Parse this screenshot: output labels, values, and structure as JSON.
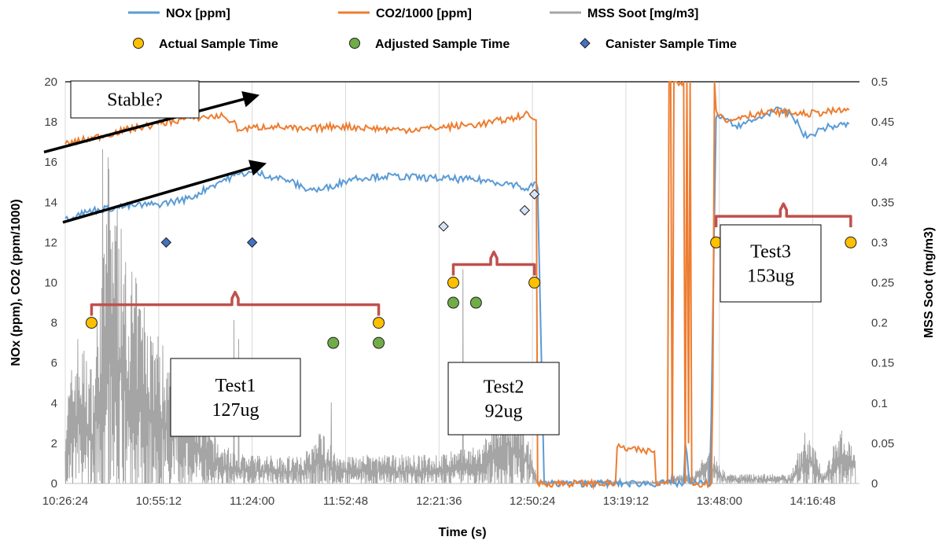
{
  "chart_data": {
    "type": "line",
    "xlabel": "Time (s)",
    "ylabel_left": "NOx (ppm), CO2 (ppm/1000)",
    "ylabel_right": "MSS Soot (mg/m3)",
    "x_ticks": [
      "10:26:24",
      "10:55:12",
      "11:24:00",
      "11:52:48",
      "12:21:36",
      "12:50:24",
      "13:19:12",
      "13:48:00",
      "14:16:48"
    ],
    "xlim": [
      "10:26:24",
      "14:31:12"
    ],
    "y_left_ticks": [
      "0",
      "2",
      "4",
      "6",
      "8",
      "10",
      "12",
      "14",
      "16",
      "18",
      "20"
    ],
    "y_left_lim": [
      0,
      20
    ],
    "y_right_ticks": [
      "0",
      "0.05",
      "0.1",
      "0.15",
      "0.2",
      "0.25",
      "0.3",
      "0.35",
      "0.4",
      "0.45",
      "0.5"
    ],
    "y_right_lim": [
      0,
      0.5
    ],
    "grid": "vertical",
    "legend": [
      {
        "label": "NOx [ppm]",
        "kind": "line",
        "color": "#5b9bd5"
      },
      {
        "label": "CO2/1000 [ppm]",
        "kind": "line",
        "color": "#ed7d31"
      },
      {
        "label": "MSS Soot [mg/m3]",
        "kind": "line",
        "color": "#a5a5a5"
      },
      {
        "label": "Actual Sample Time",
        "kind": "circle",
        "color": "#ffc000"
      },
      {
        "label": "Adjusted Sample Time",
        "kind": "circle",
        "color": "#70ad47"
      },
      {
        "label": "Canister Sample Time",
        "kind": "diamond",
        "color": "#4472c4"
      }
    ],
    "series": [
      {
        "name": "NOx [ppm]",
        "axis": "left",
        "color": "#5b9bd5",
        "x": [
          "10:26:24",
          "10:35:00",
          "10:45:00",
          "10:55:00",
          "11:05:00",
          "11:10:00",
          "11:15:00",
          "11:20:00",
          "11:24:00",
          "11:35:00",
          "11:40:00",
          "11:45:00",
          "11:50:00",
          "11:55:00",
          "12:05:00",
          "12:20:00",
          "12:35:00",
          "12:45:00",
          "12:49:00",
          "12:51:00",
          "12:52:00",
          "12:54:00",
          "13:33:00",
          "13:33:30",
          "13:34:00",
          "13:37:00",
          "13:37:30",
          "13:38:00",
          "13:38:30",
          "13:39:00",
          "13:45:00",
          "13:45:30",
          "13:46:00",
          "13:47:00",
          "13:49:00",
          "13:52:00",
          "13:58:00",
          "14:05:00",
          "14:10:00",
          "14:15:00",
          "14:20:00",
          "14:28:00"
        ],
        "y": [
          13.2,
          13.6,
          13.8,
          13.9,
          14.2,
          14.7,
          15.1,
          15.4,
          15.5,
          15.1,
          14.7,
          14.6,
          14.9,
          15.2,
          15.3,
          15.2,
          15.1,
          14.9,
          14.6,
          15.0,
          14.7,
          0,
          0,
          0.5,
          0,
          0,
          2.0,
          1.5,
          0.5,
          0,
          0,
          3.3,
          8.5,
          18.2,
          18.3,
          17.8,
          18.0,
          18.6,
          18.4,
          17.2,
          17.7,
          17.9
        ]
      },
      {
        "name": "CO2/1000 [ppm]",
        "axis": "left",
        "color": "#ed7d31",
        "x": [
          "10:26:24",
          "10:35:00",
          "10:45:00",
          "10:55:00",
          "11:05:00",
          "11:15:00",
          "11:18:00",
          "11:20:00",
          "11:24:00",
          "11:30:00",
          "11:40:00",
          "11:50:00",
          "12:00:00",
          "12:10:00",
          "12:20:00",
          "12:35:00",
          "12:45:00",
          "12:48:00",
          "12:50:00",
          "12:51:30",
          "12:52:00",
          "13:16:00",
          "13:16:30",
          "13:25:00",
          "13:28:00",
          "13:28:30",
          "13:31:00",
          "13:32:00",
          "13:32:30",
          "13:33:00",
          "13:33:30",
          "13:34:00",
          "13:37:00",
          "13:37:30",
          "13:38:00",
          "13:38:30",
          "13:39:00",
          "13:39:30",
          "13:45:30",
          "13:46:00",
          "13:46:30",
          "13:47:00",
          "13:50:00",
          "13:55:00",
          "14:05:00",
          "14:15:00",
          "14:28:00"
        ],
        "y": [
          16.9,
          17.2,
          17.6,
          17.9,
          18.2,
          18.3,
          18.0,
          17.6,
          17.7,
          17.8,
          17.6,
          17.8,
          17.7,
          17.6,
          17.7,
          17.9,
          18.2,
          18.4,
          18.2,
          18.1,
          0,
          0,
          1.8,
          1.6,
          1.6,
          0,
          0,
          0,
          20,
          20,
          0,
          20,
          20,
          0,
          20,
          2.0,
          20,
          0,
          0,
          4.7,
          20,
          18.6,
          18.0,
          18.3,
          18.5,
          18.4,
          18.6
        ]
      },
      {
        "name": "MSS Soot [mg/m3]",
        "axis": "right",
        "color": "#a5a5a5",
        "x": [
          "10:26:24",
          "10:30:00",
          "10:35:00",
          "10:40:00",
          "10:45:00",
          "10:50:00",
          "10:55:00",
          "11:00:00",
          "11:05:00",
          "11:10:00",
          "11:15:00",
          "11:24:00",
          "11:40:00",
          "11:45:00",
          "11:50:00",
          "12:00:00",
          "12:20:00",
          "12:35:00",
          "12:42:00",
          "12:45:00",
          "12:50:00",
          "12:52:00",
          "13:30:00",
          "13:35:00",
          "13:40:00",
          "13:45:00",
          "13:50:00",
          "13:55:00",
          "14:00:00",
          "14:10:00",
          "14:15:00",
          "14:20:00",
          "14:25:00",
          "14:30:00"
        ],
        "y": [
          0.04,
          0.08,
          0.06,
          0.18,
          0.12,
          0.1,
          0.08,
          0.06,
          0.05,
          0.03,
          0.02,
          0.015,
          0.015,
          0.03,
          0.015,
          0.015,
          0.015,
          0.02,
          0.05,
          0.04,
          0.02,
          0.0,
          0.0,
          0.005,
          0.005,
          0.02,
          0.005,
          0.005,
          0.005,
          0.005,
          0.03,
          0.005,
          0.03,
          0.02
        ]
      }
    ],
    "actual_sample_times": [
      {
        "x": "10:34:30",
        "y": 8
      },
      {
        "x": "12:03:00",
        "y": 8
      },
      {
        "x": "12:26:00",
        "y": 10
      },
      {
        "x": "12:51:00",
        "y": 10
      },
      {
        "x": "13:47:00",
        "y": 12
      },
      {
        "x": "14:28:30",
        "y": 12
      }
    ],
    "adjusted_sample_times": [
      {
        "x": "11:49:00",
        "y": 7
      },
      {
        "x": "12:03:00",
        "y": 7
      },
      {
        "x": "12:26:00",
        "y": 9
      },
      {
        "x": "12:33:00",
        "y": 9
      }
    ],
    "canister_sample_times": [
      {
        "x": "10:57:30",
        "y": 12
      },
      {
        "x": "11:24:00",
        "y": 12
      },
      {
        "x": "12:23:00",
        "y": 12.8
      },
      {
        "x": "12:48:00",
        "y": 13.6
      },
      {
        "x": "12:51:00",
        "y": 14.4
      }
    ],
    "annotations": [
      {
        "text": "Stable?"
      },
      {
        "lines": [
          "Test1",
          "127ug"
        ]
      },
      {
        "lines": [
          "Test2",
          "92ug"
        ]
      },
      {
        "lines": [
          "Test3",
          "153ug"
        ]
      }
    ]
  }
}
